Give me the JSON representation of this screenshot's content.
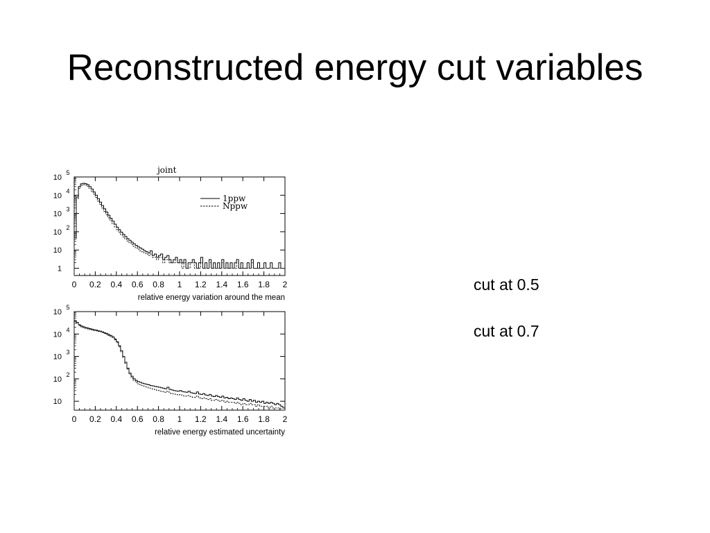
{
  "slide": {
    "title": "Reconstructed energy cut variables",
    "notes": [
      "cut at 0.5",
      "cut at 0.7"
    ]
  },
  "colors": {
    "solid": "#000000",
    "dashed": "#222222"
  },
  "chart_data": [
    {
      "type": "line",
      "title": "joint",
      "xlabel": "relative energy variation around the mean",
      "ylabel": "",
      "log_y": true,
      "xlim": [
        0,
        2
      ],
      "ylim": [
        0.4,
        100000
      ],
      "xticks": [
        "0",
        "0.2",
        "0.4",
        "0.6",
        "0.8",
        "1",
        "1.2",
        "1.4",
        "1.6",
        "1.8",
        "2"
      ],
      "yticks": [
        {
          "value": 1,
          "base": "1",
          "exp": ""
        },
        {
          "value": 10,
          "base": "10",
          "exp": ""
        },
        {
          "value": 100,
          "base": "10",
          "exp": "2"
        },
        {
          "value": 1000,
          "base": "10",
          "exp": "3"
        },
        {
          "value": 10000,
          "base": "10",
          "exp": "4"
        },
        {
          "value": 100000,
          "base": "10",
          "exp": "5"
        }
      ],
      "legend": "top-right",
      "x": [
        0.0,
        0.02,
        0.04,
        0.06,
        0.08,
        0.1,
        0.12,
        0.14,
        0.16,
        0.18,
        0.2,
        0.22,
        0.24,
        0.26,
        0.28,
        0.3,
        0.32,
        0.34,
        0.36,
        0.38,
        0.4,
        0.42,
        0.44,
        0.46,
        0.48,
        0.5,
        0.52,
        0.54,
        0.56,
        0.58,
        0.6,
        0.62,
        0.64,
        0.66,
        0.68,
        0.7,
        0.72,
        0.74,
        0.76,
        0.78,
        0.8,
        0.82,
        0.84,
        0.86,
        0.88,
        0.9,
        0.92,
        0.94,
        0.96,
        0.98,
        1.0,
        1.02,
        1.04,
        1.06,
        1.08,
        1.1,
        1.12,
        1.14,
        1.16,
        1.18,
        1.2,
        1.22,
        1.24,
        1.26,
        1.28,
        1.3,
        1.32,
        1.34,
        1.36,
        1.38,
        1.4,
        1.42,
        1.44,
        1.46,
        1.48,
        1.5,
        1.52,
        1.54,
        1.56,
        1.58,
        1.6,
        1.62,
        1.64,
        1.66,
        1.68,
        1.7,
        1.72,
        1.74,
        1.76,
        1.78,
        1.8,
        1.82,
        1.84,
        1.86,
        1.88,
        1.9,
        1.92,
        1.94,
        1.96,
        1.98
      ],
      "series": [
        {
          "name": "1ppw",
          "style": "solid",
          "values": [
            50,
            8000,
            30000,
            42000,
            45000,
            43000,
            38000,
            30000,
            22000,
            15000,
            10000,
            6500,
            4200,
            2700,
            1800,
            1200,
            800,
            550,
            380,
            260,
            180,
            130,
            95,
            72,
            55,
            42,
            34,
            27,
            22,
            18,
            15,
            13,
            11,
            9,
            8,
            7,
            9,
            5,
            6,
            4,
            5,
            6,
            3,
            4,
            5,
            3,
            2,
            3,
            4,
            2,
            3,
            2,
            3,
            1,
            2,
            2,
            3,
            2,
            1,
            2,
            4,
            1,
            2,
            1,
            3,
            1,
            2,
            1,
            2,
            1,
            3,
            1,
            2,
            1,
            2,
            1,
            2,
            3,
            1,
            2,
            1,
            1,
            2,
            1,
            3,
            1,
            1,
            2,
            1,
            1,
            2,
            1,
            1,
            2,
            1,
            1,
            1,
            2,
            1,
            1
          ]
        },
        {
          "name": "Nppw",
          "style": "dashed",
          "values": [
            40,
            6500,
            24000,
            35000,
            38000,
            36000,
            31000,
            24000,
            17000,
            11500,
            7500,
            4800,
            3100,
            2000,
            1300,
            850,
            570,
            390,
            270,
            185,
            130,
            92,
            68,
            52,
            40,
            31,
            25,
            20,
            16,
            13,
            11,
            9,
            8,
            7,
            6,
            5,
            6,
            4,
            4,
            3,
            4,
            4,
            2,
            3,
            3,
            2,
            2,
            2,
            3,
            2,
            2,
            1,
            2,
            1,
            1,
            2,
            2,
            1,
            1,
            1,
            2,
            1,
            1,
            1,
            2,
            1,
            1,
            1,
            1,
            1,
            2,
            1,
            1,
            1,
            1,
            1,
            1,
            2,
            1,
            1,
            1,
            1,
            1,
            1,
            2,
            1,
            1,
            1,
            1,
            1,
            1,
            1,
            1,
            1,
            1,
            1,
            1,
            1,
            1,
            1
          ]
        }
      ]
    },
    {
      "type": "line",
      "title": "",
      "xlabel": "relative energy estimated uncertainty",
      "ylabel": "",
      "log_y": true,
      "xlim": [
        0,
        2
      ],
      "ylim": [
        4,
        100000
      ],
      "xticks": [
        "0",
        "0.2",
        "0.4",
        "0.6",
        "0.8",
        "1",
        "1.2",
        "1.4",
        "1.6",
        "1.8",
        "2"
      ],
      "yticks": [
        {
          "value": 10,
          "base": "10",
          "exp": ""
        },
        {
          "value": 100,
          "base": "10",
          "exp": "2"
        },
        {
          "value": 1000,
          "base": "10",
          "exp": "3"
        },
        {
          "value": 10000,
          "base": "10",
          "exp": "4"
        },
        {
          "value": 100000,
          "base": "10",
          "exp": "5"
        }
      ],
      "legend": "",
      "x": [
        0.0,
        0.02,
        0.04,
        0.06,
        0.08,
        0.1,
        0.12,
        0.14,
        0.16,
        0.18,
        0.2,
        0.22,
        0.24,
        0.26,
        0.28,
        0.3,
        0.32,
        0.34,
        0.36,
        0.38,
        0.4,
        0.42,
        0.44,
        0.46,
        0.48,
        0.5,
        0.52,
        0.54,
        0.56,
        0.58,
        0.6,
        0.62,
        0.64,
        0.66,
        0.68,
        0.7,
        0.72,
        0.74,
        0.76,
        0.78,
        0.8,
        0.82,
        0.84,
        0.86,
        0.88,
        0.9,
        0.92,
        0.94,
        0.96,
        0.98,
        1.0,
        1.02,
        1.04,
        1.06,
        1.08,
        1.1,
        1.12,
        1.14,
        1.16,
        1.18,
        1.2,
        1.22,
        1.24,
        1.26,
        1.28,
        1.3,
        1.32,
        1.34,
        1.36,
        1.38,
        1.4,
        1.42,
        1.44,
        1.46,
        1.48,
        1.5,
        1.52,
        1.54,
        1.56,
        1.58,
        1.6,
        1.62,
        1.64,
        1.66,
        1.68,
        1.7,
        1.72,
        1.74,
        1.76,
        1.78,
        1.8,
        1.82,
        1.84,
        1.86,
        1.88,
        1.9,
        1.92,
        1.94,
        1.96,
        1.98
      ],
      "series": [
        {
          "name": "1ppw",
          "style": "solid",
          "values": [
            40000,
            33000,
            26000,
            23000,
            21000,
            19500,
            18500,
            17500,
            16500,
            15500,
            15000,
            14000,
            13500,
            12500,
            11500,
            10500,
            9500,
            8500,
            7500,
            6000,
            4500,
            3000,
            1800,
            1000,
            550,
            300,
            180,
            130,
            100,
            85,
            75,
            70,
            64,
            60,
            57,
            54,
            50,
            48,
            46,
            44,
            42,
            40,
            38,
            36,
            42,
            34,
            32,
            30,
            29,
            28,
            30,
            27,
            26,
            25,
            28,
            24,
            23,
            22,
            26,
            21,
            20,
            22,
            19,
            18,
            20,
            17,
            16,
            18,
            16,
            15,
            17,
            14,
            15,
            13,
            14,
            13,
            12,
            14,
            12,
            11,
            13,
            11,
            10,
            12,
            10,
            11,
            9,
            10,
            9,
            10,
            8,
            9,
            8,
            9,
            8,
            7,
            8,
            7,
            6,
            5
          ]
        },
        {
          "name": "Nppw",
          "style": "dashed",
          "values": [
            36000,
            30000,
            24000,
            21000,
            19500,
            18000,
            17000,
            16000,
            15200,
            14300,
            13800,
            13000,
            12500,
            11500,
            10600,
            9700,
            8700,
            7800,
            6900,
            5500,
            4100,
            2700,
            1600,
            900,
            490,
            270,
            160,
            110,
            85,
            70,
            60,
            55,
            50,
            46,
            43,
            40,
            37,
            35,
            33,
            31,
            30,
            28,
            27,
            25,
            28,
            23,
            22,
            21,
            20,
            19,
            20,
            18,
            17,
            17,
            18,
            16,
            15,
            15,
            17,
            14,
            13,
            14,
            13,
            12,
            13,
            11,
            11,
            12,
            11,
            10,
            11,
            9,
            10,
            9,
            9,
            9,
            8,
            9,
            8,
            7,
            8,
            7,
            7,
            8,
            7,
            7,
            6,
            7,
            6,
            6,
            6,
            6,
            5,
            6,
            5,
            5,
            5,
            5,
            4,
            4
          ]
        }
      ]
    }
  ]
}
